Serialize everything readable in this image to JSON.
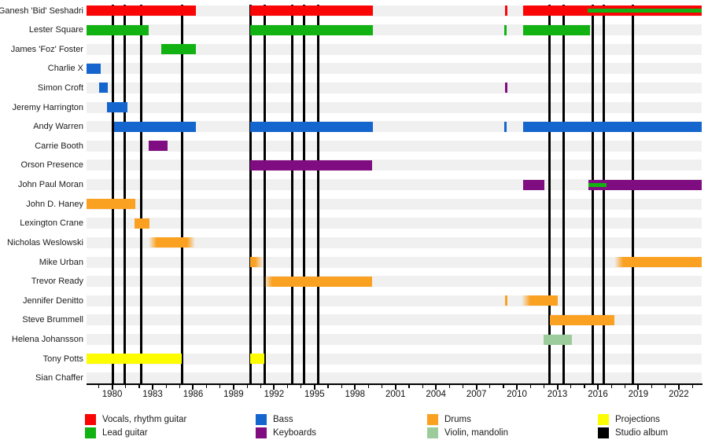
{
  "chart_data": {
    "type": "timeline",
    "title": "",
    "x_axis": {
      "year_min": 1978.1,
      "year_max": 2023.7,
      "major_ticks": [
        1980,
        1983,
        1986,
        1989,
        1992,
        1995,
        1998,
        2001,
        2004,
        2007,
        2010,
        2013,
        2016,
        2019,
        2022
      ],
      "minor_tick_first": 1979,
      "minor_tick_last": 2023,
      "minor_tick_step": 1
    },
    "roles": {
      "vocals": {
        "label": "Vocals, rhythm guitar",
        "color": "#fa0506"
      },
      "lead": {
        "label": "Lead guitar",
        "color": "#12b212"
      },
      "bass": {
        "label": "Bass",
        "color": "#1465cd"
      },
      "keys": {
        "label": "Keyboards",
        "color": "#7f0c80"
      },
      "drums": {
        "label": "Drums",
        "color": "#fba122"
      },
      "violin": {
        "label": "Violin, mandolin",
        "color": "#9ccc9c"
      },
      "projections": {
        "label": "Projections",
        "color": "#fdfd00"
      },
      "album": {
        "label": "Studio album",
        "color": "#000000"
      }
    },
    "members": [
      {
        "name": "Ganesh 'Bid' Seshadri",
        "bars": [
          {
            "start": 1978.1,
            "end": 1986.2,
            "role": "vocals"
          },
          {
            "start": 1990.23,
            "end": 1999.32,
            "role": "vocals"
          },
          {
            "start": 2009.1,
            "end": 2009.28,
            "role": "vocals"
          },
          {
            "start": 2010.46,
            "end": 2023.7,
            "role": "vocals",
            "overlay": {
              "start": 2015.24,
              "end": 2023.7,
              "role": "lead"
            }
          }
        ]
      },
      {
        "name": "Lester Square",
        "bars": [
          {
            "start": 1978.1,
            "end": 1982.71,
            "role": "lead"
          },
          {
            "start": 1990.23,
            "end": 1999.32,
            "role": "lead"
          },
          {
            "start": 2009.06,
            "end": 2009.22,
            "role": "lead"
          },
          {
            "start": 2010.46,
            "end": 2015.41,
            "role": "lead"
          }
        ]
      },
      {
        "name": "James 'Foz' Foster",
        "bars": [
          {
            "start": 1983.64,
            "end": 1986.2,
            "role": "lead"
          }
        ]
      },
      {
        "name": "Charlie X",
        "bars": [
          {
            "start": 1978.1,
            "end": 1979.15,
            "role": "bass"
          }
        ]
      },
      {
        "name": "Simon Croft",
        "bars": [
          {
            "start": 1979.03,
            "end": 1979.67,
            "role": "bass"
          },
          {
            "start": 2009.1,
            "end": 2009.28,
            "role": "keys"
          }
        ]
      },
      {
        "name": "Jeremy Harrington",
        "bars": [
          {
            "start": 1979.62,
            "end": 1981.13,
            "role": "bass"
          }
        ]
      },
      {
        "name": "Andy Warren",
        "bars": [
          {
            "start": 1980.14,
            "end": 1986.2,
            "role": "bass"
          },
          {
            "start": 1990.23,
            "end": 1999.32,
            "role": "bass"
          },
          {
            "start": 2009.06,
            "end": 2009.24,
            "role": "bass"
          },
          {
            "start": 2010.46,
            "end": 2023.7,
            "role": "bass"
          }
        ]
      },
      {
        "name": "Carrie Booth",
        "bars": [
          {
            "start": 1982.71,
            "end": 1984.1,
            "role": "keys"
          }
        ]
      },
      {
        "name": "Orson Presence",
        "bars": [
          {
            "start": 1990.23,
            "end": 1999.27,
            "role": "keys"
          }
        ]
      },
      {
        "name": "John Paul Moran",
        "bars": [
          {
            "start": 2010.46,
            "end": 2012.03,
            "role": "keys"
          },
          {
            "start": 2015.3,
            "end": 2023.7,
            "role": "keys",
            "overlay": {
              "start": 2015.3,
              "end": 2016.64,
              "role": "lead"
            }
          }
        ]
      },
      {
        "name": "John D. Haney",
        "bars": [
          {
            "start": 1978.1,
            "end": 1981.72,
            "role": "drums"
          }
        ]
      },
      {
        "name": "Lexington Crane",
        "bars": [
          {
            "start": 1981.66,
            "end": 1982.76,
            "role": "drums"
          }
        ]
      },
      {
        "name": "Nicholas Weslowski",
        "bars": [
          {
            "start": 1982.71,
            "end": 1986.15,
            "role": "drums",
            "fade": "both"
          }
        ]
      },
      {
        "name": "Mike Urban",
        "bars": [
          {
            "start": 1990.23,
            "end": 1991.22,
            "role": "drums",
            "fade": "right"
          },
          {
            "start": 2017.22,
            "end": 2023.7,
            "role": "drums",
            "fade": "left"
          }
        ]
      },
      {
        "name": "Trevor Ready",
        "bars": [
          {
            "start": 1991.22,
            "end": 1999.27,
            "role": "drums",
            "fade": "left"
          }
        ]
      },
      {
        "name": "Jennifer Denitto",
        "bars": [
          {
            "start": 2009.1,
            "end": 2009.28,
            "role": "drums"
          },
          {
            "start": 2010.34,
            "end": 2013.02,
            "role": "drums",
            "fade": "left"
          }
        ]
      },
      {
        "name": "Steve Brummell",
        "bars": [
          {
            "start": 2012.44,
            "end": 2017.22,
            "role": "drums"
          }
        ]
      },
      {
        "name": "Helena Johansson",
        "bars": [
          {
            "start": 2011.97,
            "end": 2014.07,
            "role": "violin"
          }
        ]
      },
      {
        "name": "Tony Potts",
        "bars": [
          {
            "start": 1978.1,
            "end": 1985.15,
            "role": "projections"
          },
          {
            "start": 1990.23,
            "end": 1991.28,
            "role": "projections"
          }
        ]
      },
      {
        "name": "Sian Chaffer",
        "bars": []
      }
    ],
    "albums": [
      1980.08,
      1980.9,
      1982.18,
      1985.21,
      1990.23,
      1991.28,
      1993.32,
      1994.25,
      1995.3,
      2012.44,
      2013.49,
      2015.65,
      2016.46,
      2018.62
    ],
    "legend": {
      "columns": [
        [
          "vocals",
          "lead"
        ],
        [
          "bass",
          "keys"
        ],
        [
          "drums",
          "violin"
        ],
        [
          "projections",
          "album"
        ]
      ]
    }
  }
}
